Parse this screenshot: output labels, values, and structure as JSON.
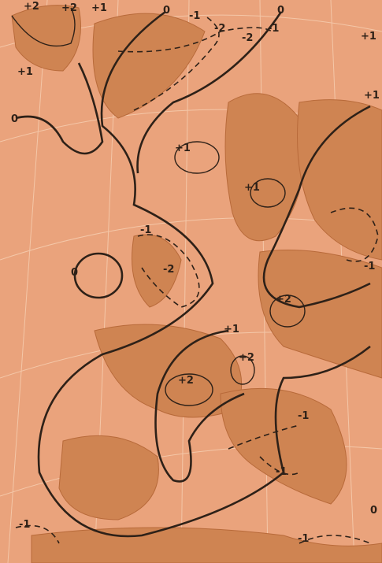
{
  "map": {
    "contour_labels": [
      "+2",
      "+2",
      "+1",
      "0",
      "+1",
      "0",
      "-1",
      "-2",
      "-2",
      "-1",
      "0",
      "+1",
      "+1",
      "-1",
      "-2",
      "0",
      "+2",
      "+1",
      "+2",
      "+2",
      "+1",
      "+1",
      "-1",
      "-1",
      "-1",
      "0",
      "-1",
      "-1"
    ]
  }
}
